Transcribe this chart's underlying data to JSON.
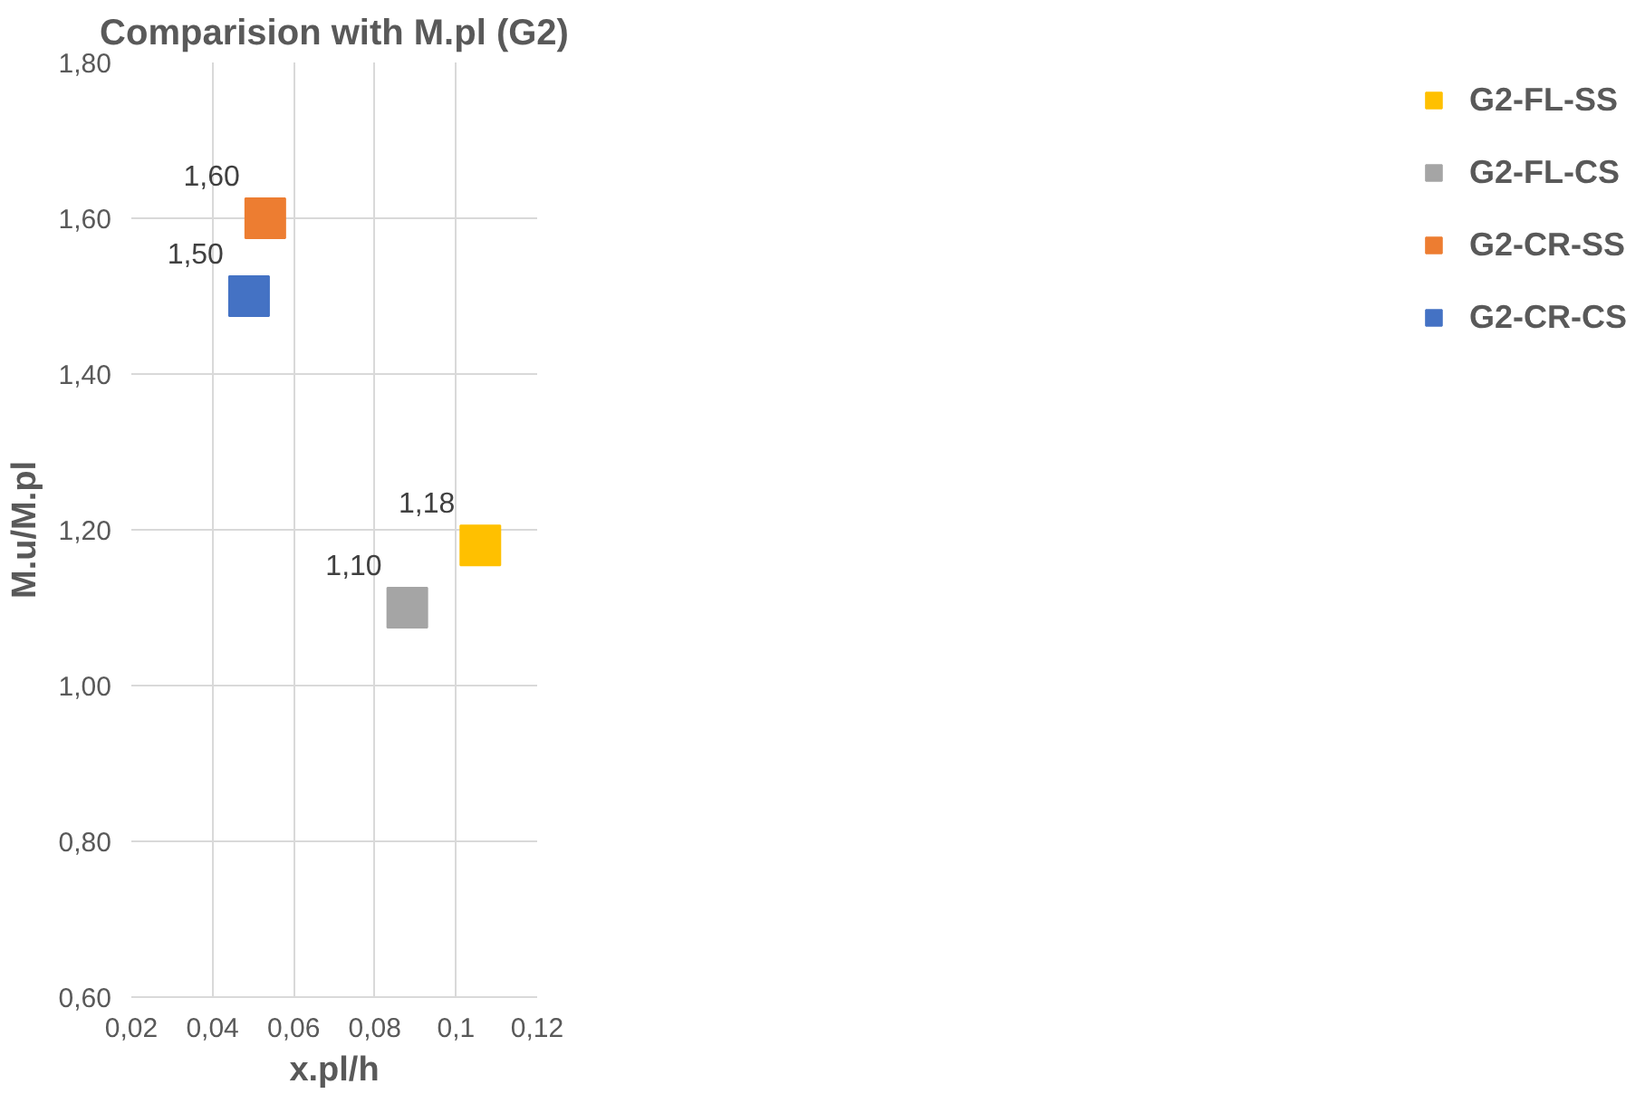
{
  "chart_data": {
    "type": "scatter",
    "title": "Comparision with M.pl (G2)",
    "xlabel": "x.pl/h",
    "ylabel": "M.u/M.pl",
    "xlim": [
      0.02,
      0.12
    ],
    "ylim": [
      0.6,
      1.8
    ],
    "xticks": [
      {
        "value": 0.02,
        "label": "0,02"
      },
      {
        "value": 0.04,
        "label": "0,04"
      },
      {
        "value": 0.06,
        "label": "0,06"
      },
      {
        "value": 0.08,
        "label": "0,08"
      },
      {
        "value": 0.1,
        "label": "0,1"
      },
      {
        "value": 0.12,
        "label": "0,12"
      }
    ],
    "yticks": [
      {
        "value": 0.6,
        "label": "0,60"
      },
      {
        "value": 0.8,
        "label": "0,80"
      },
      {
        "value": 1.0,
        "label": "1,00"
      },
      {
        "value": 1.2,
        "label": "1,20"
      },
      {
        "value": 1.4,
        "label": "1,40"
      },
      {
        "value": 1.6,
        "label": "1,60"
      },
      {
        "value": 1.8,
        "label": "1,80"
      }
    ],
    "grid": true,
    "legend": "right",
    "marker": "square",
    "series": [
      {
        "name": "G2-FL-SS",
        "color": "#ffc000",
        "x": [
          0.106
        ],
        "values": [
          1.18
        ],
        "value_labels": [
          "1,18"
        ]
      },
      {
        "name": "G2-FL-CS",
        "color": "#a5a5a5",
        "x": [
          0.088
        ],
        "values": [
          1.1
        ],
        "value_labels": [
          "1,10"
        ]
      },
      {
        "name": "G2-CR-SS",
        "color": "#ed7d31",
        "x": [
          0.053
        ],
        "values": [
          1.6
        ],
        "value_labels": [
          "1,60"
        ]
      },
      {
        "name": "G2-CR-CS",
        "color": "#4472c4",
        "x": [
          0.049
        ],
        "values": [
          1.5
        ],
        "value_labels": [
          "1,50"
        ]
      }
    ]
  }
}
